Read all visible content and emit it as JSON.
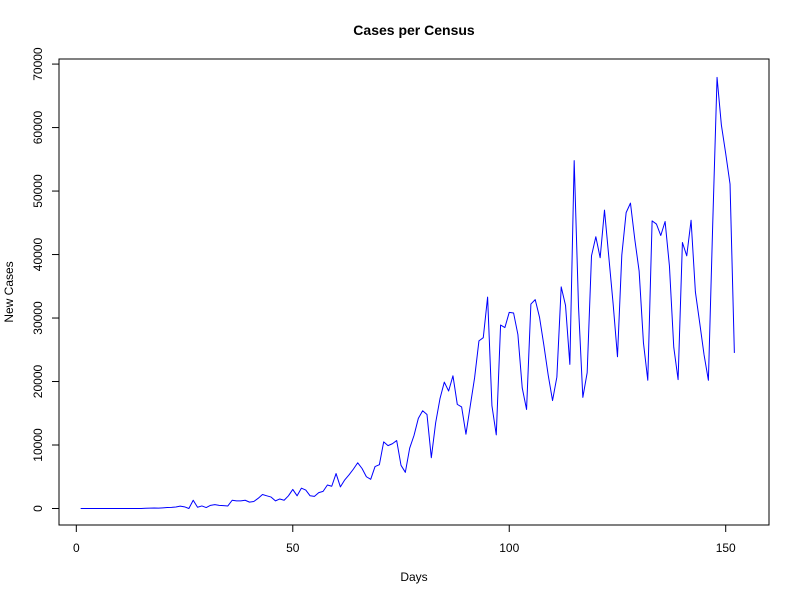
{
  "chart_data": {
    "type": "line",
    "title": "Cases per Census",
    "xlabel": "Days",
    "ylabel": "New Cases",
    "xlim": [
      -4,
      160
    ],
    "ylim": [
      -2600,
      70800
    ],
    "x_ticks": [
      0,
      50,
      100,
      150
    ],
    "y_ticks": [
      0,
      10000,
      20000,
      30000,
      40000,
      50000,
      60000,
      70000
    ],
    "grid": false,
    "line_color": "#0000ff",
    "series": [
      {
        "x_start": 1,
        "values": [
          0,
          0,
          0,
          0,
          0,
          0,
          0,
          0,
          0,
          0,
          0,
          0,
          0,
          0,
          0,
          30,
          50,
          80,
          50,
          100,
          150,
          180,
          240,
          380,
          260,
          0,
          1300,
          200,
          400,
          150,
          500,
          600,
          500,
          450,
          400,
          1300,
          1200,
          1200,
          1300,
          1000,
          1100,
          1600,
          2200,
          2000,
          1800,
          1200,
          1500,
          1300,
          2000,
          3000,
          2000,
          3200,
          2900,
          2000,
          1900,
          2500,
          2700,
          3700,
          3500,
          5500,
          3400,
          4500,
          5300,
          6200,
          7200,
          6300,
          5000,
          4600,
          6600,
          6900,
          10500,
          9900,
          10200,
          10700,
          6800,
          5700,
          9500,
          11500,
          14200,
          15400,
          14800,
          8000,
          13500,
          17300,
          19900,
          18500,
          20900,
          16400,
          16000,
          11700,
          16200,
          20600,
          26400,
          26900,
          33300,
          16200,
          11600,
          28900,
          28500,
          30900,
          30800,
          27400,
          19000,
          15600,
          32200,
          32900,
          30100,
          25700,
          21000,
          17000,
          20700,
          34900,
          32000,
          22700,
          54800,
          31800,
          17500,
          21400,
          39800,
          42800,
          39500,
          47000,
          39600,
          32200,
          23900,
          39900,
          46600,
          48100,
          42400,
          37400,
          26100,
          20200,
          45300,
          44800,
          43000,
          45200,
          38200,
          25400,
          20300,
          41900,
          39800,
          45400,
          34100,
          29200,
          24200,
          20200,
          44800,
          67900,
          60400,
          55900,
          51100,
          24500
        ]
      }
    ]
  }
}
